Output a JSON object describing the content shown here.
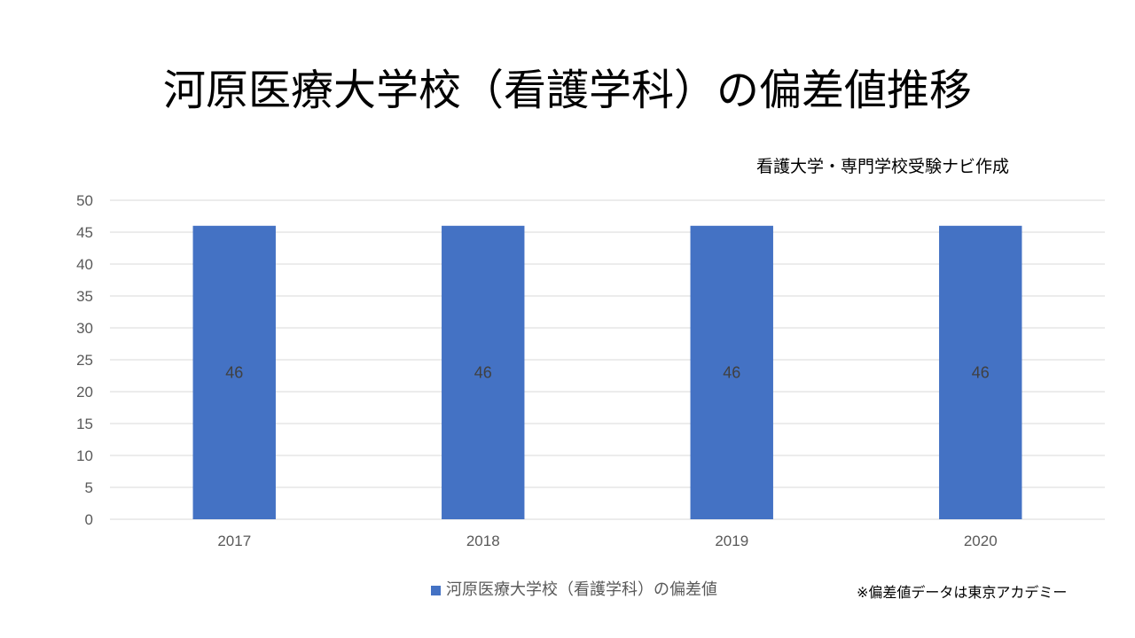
{
  "chart_data": {
    "type": "bar",
    "title": "河原医療大学校（看護学科）の偏差値推移",
    "subtitle": "看護大学・専門学校受験ナビ作成",
    "categories": [
      "2017",
      "2018",
      "2019",
      "2020"
    ],
    "series": [
      {
        "name": "河原医療大学校（看護学科）の偏差値",
        "values": [
          46,
          46,
          46,
          46
        ],
        "color": "#4472C4"
      }
    ],
    "data_labels": [
      "46",
      "46",
      "46",
      "46"
    ],
    "y_ticks": [
      "0",
      "5",
      "10",
      "15",
      "20",
      "25",
      "30",
      "35",
      "40",
      "45",
      "50"
    ],
    "ylim": [
      0,
      50
    ],
    "grid": true,
    "legend_position": "bottom",
    "xlabel": "",
    "ylabel": ""
  },
  "footnote": "※偏差値データは東京アカデミー"
}
